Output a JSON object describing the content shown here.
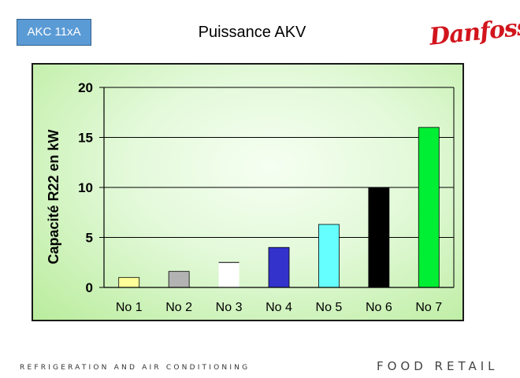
{
  "header": {
    "model_label": "AKC 11xA",
    "slide_title": "Puissance AKV",
    "brand": "Danfoss"
  },
  "footer": {
    "left_text": "REFRIGERATION AND AIR CONDITIONING",
    "right_text": "FOOD RETAIL"
  },
  "colors": {
    "brand_red": "#d2151c",
    "model_box": "#5b9bd5"
  },
  "chart_data": {
    "type": "bar",
    "title": "",
    "xlabel": "",
    "ylabel": "Capacité R22 en kW",
    "ylim": [
      0,
      20
    ],
    "yticks": [
      0,
      5,
      10,
      15,
      20
    ],
    "grid": true,
    "categories": [
      "No 1",
      "No 2",
      "No 3",
      "No 4",
      "No 5",
      "No 6",
      "No 7"
    ],
    "values": [
      1.0,
      1.6,
      2.5,
      4.0,
      6.3,
      10.0,
      16.0
    ],
    "bar_colors": [
      "#ffff99",
      "#b3b3b3",
      "#ffffff",
      "#3333cc",
      "#66ffff",
      "#000000",
      "#00ee33"
    ]
  }
}
